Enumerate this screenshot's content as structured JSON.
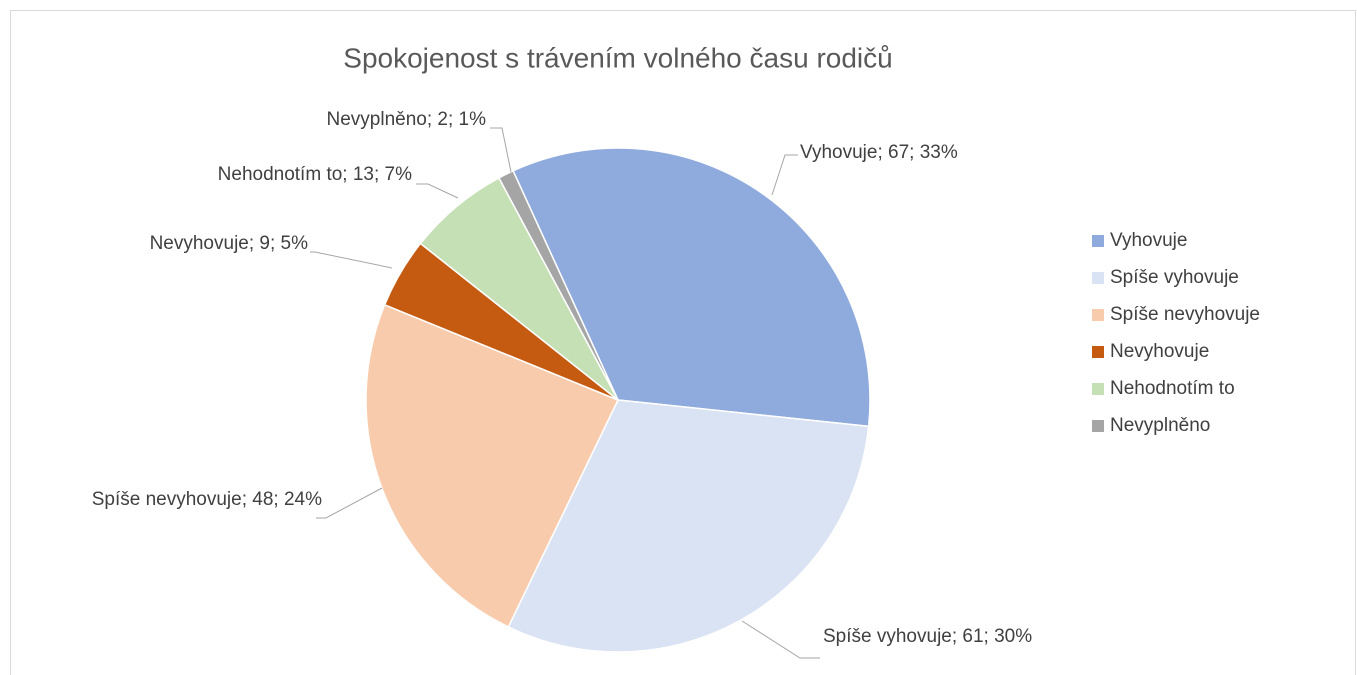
{
  "chart_data": {
    "type": "pie",
    "title": "Spokojenost s trávením volného času rodičů",
    "categories": [
      "Vyhovuje",
      "Spíše vyhovuje",
      "Spíše nevyhovuje",
      "Nevyhovuje",
      "Nehodnotím to",
      "Nevyplněno"
    ],
    "values": [
      67,
      61,
      48,
      9,
      13,
      2
    ],
    "value_labels": [
      "Vyhovuje; 67; 33%",
      "Spíše vyhovuje; 61; 30%",
      "Spíše nevyhovuje; 48; 24%",
      "Nevyhovuje; 9; 5%",
      "Nehodnotím to; 13; 7%",
      "Nevyplněno; 2; 1%"
    ],
    "colors": [
      "#8faadc",
      "#dae3f3",
      "#f8cbad",
      "#c55a11",
      "#c5e0b4",
      "#a5a5a5"
    ],
    "legend": "right"
  }
}
